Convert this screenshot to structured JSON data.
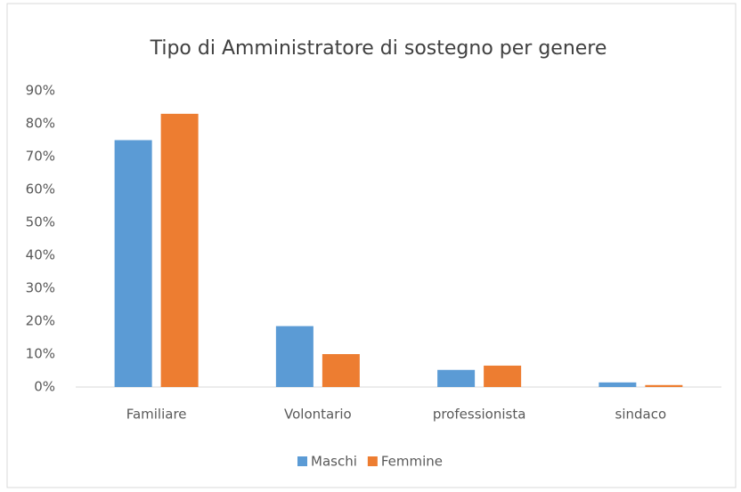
{
  "chart_data": {
    "type": "bar",
    "title": "Tipo di Amministratore di sostegno per genere",
    "categories": [
      "Familiare",
      "Volontario",
      "professionista",
      "sindaco"
    ],
    "series": [
      {
        "name": "Maschi",
        "color": "#5b9bd5",
        "values": [
          75,
          18.5,
          5.2,
          1.4
        ]
      },
      {
        "name": "Femmine",
        "color": "#ed7d31",
        "values": [
          83,
          10,
          6.5,
          0.6
        ]
      }
    ],
    "ylim": [
      0,
      90
    ],
    "yticks": [
      {
        "value": 0,
        "label": "0%"
      },
      {
        "value": 10,
        "label": "10%"
      },
      {
        "value": 20,
        "label": "20%"
      },
      {
        "value": 30,
        "label": "30%"
      },
      {
        "value": 40,
        "label": "40%"
      },
      {
        "value": 50,
        "label": "50%"
      },
      {
        "value": 60,
        "label": "60%"
      },
      {
        "value": 70,
        "label": "70%"
      },
      {
        "value": 80,
        "label": "80%"
      },
      {
        "value": 90,
        "label": "90%"
      }
    ],
    "grid": false,
    "legend": "bottom"
  }
}
